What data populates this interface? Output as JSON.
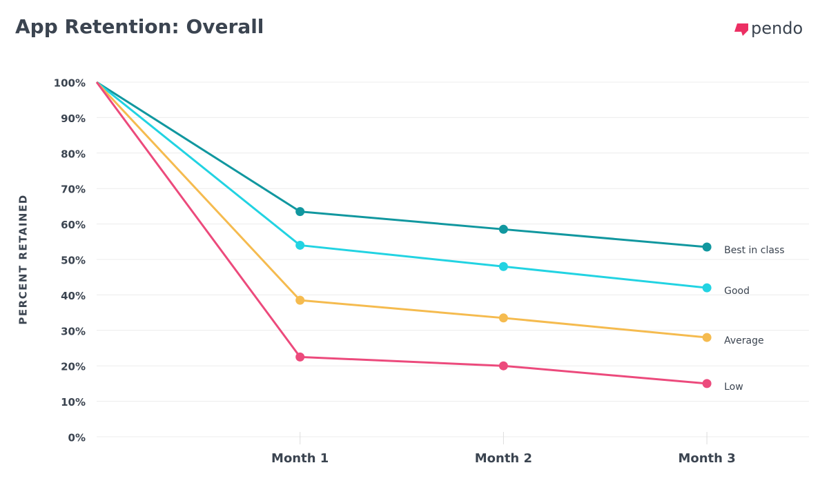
{
  "chart_data": {
    "type": "line",
    "title": "App Retention: Overall",
    "logo": "pendo",
    "y_label": "PERCENT RETAINED",
    "categories": [
      null,
      "Month 1",
      "Month 2",
      "Month 3"
    ],
    "series": [
      {
        "name": "Best in class",
        "color": "#11979f",
        "values": [
          100,
          63.5,
          58.5,
          53.5
        ]
      },
      {
        "name": "Good",
        "color": "#22d3e2",
        "values": [
          100,
          54,
          48,
          42
        ]
      },
      {
        "name": "Average",
        "color": "#f5bb4f",
        "values": [
          100,
          38.5,
          33.5,
          28
        ]
      },
      {
        "name": "Low",
        "color": "#ec4a7c",
        "values": [
          100,
          22.5,
          20,
          15
        ]
      }
    ],
    "ylim": [
      0,
      100
    ],
    "yticks": [
      {
        "value": 0,
        "label": "0%"
      },
      {
        "value": 10,
        "label": "10%"
      },
      {
        "value": 20,
        "label": "20%"
      },
      {
        "value": 30,
        "label": "30%"
      },
      {
        "value": 40,
        "label": "40%"
      },
      {
        "value": 50,
        "label": "50%"
      },
      {
        "value": 60,
        "label": "60%"
      },
      {
        "value": 70,
        "label": "70%"
      },
      {
        "value": 80,
        "label": "80%"
      },
      {
        "value": 90,
        "label": "90%"
      },
      {
        "value": 100,
        "label": "100%"
      }
    ],
    "grid": true
  }
}
